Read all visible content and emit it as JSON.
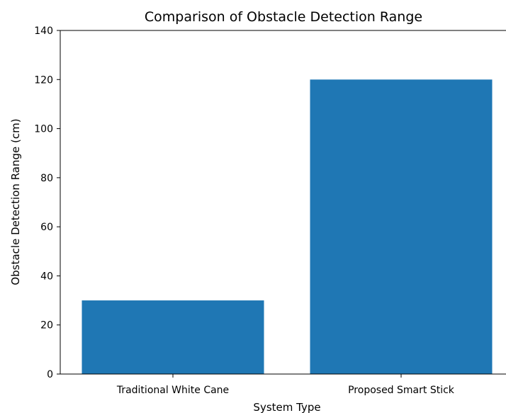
{
  "chart_data": {
    "type": "bar",
    "title": "Comparison of Obstacle Detection Range",
    "xlabel": "System Type",
    "ylabel": "Obstacle Detection Range (cm)",
    "categories": [
      "Traditional White Cane",
      "Proposed Smart Stick"
    ],
    "values": [
      30,
      120
    ],
    "ylim": [
      0,
      140
    ],
    "yticks": [
      0,
      20,
      40,
      60,
      80,
      100,
      120,
      140
    ],
    "bar_color": "#1f77b4",
    "grid": false,
    "legend": "none"
  }
}
